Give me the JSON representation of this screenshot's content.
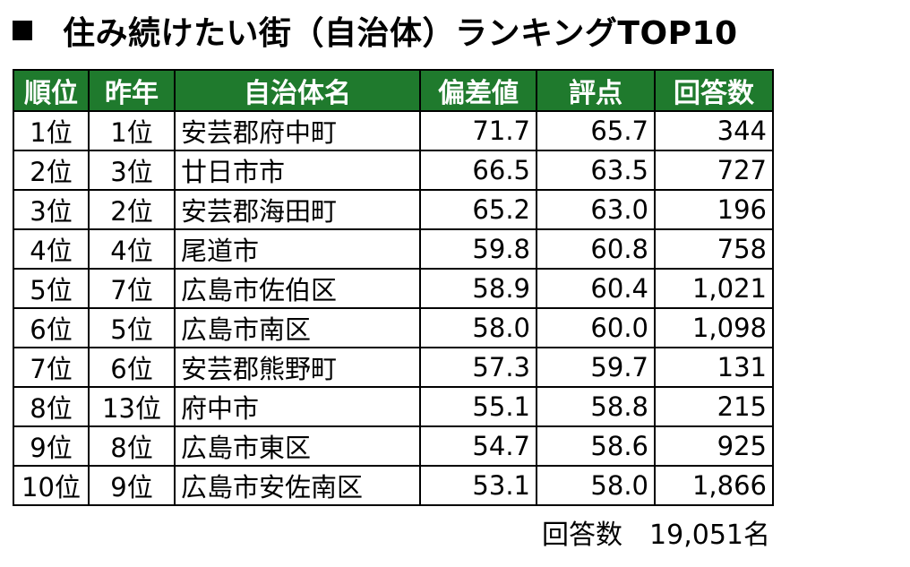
{
  "title": {
    "text": "住み続けたい街（自治体）ランキングTOP10"
  },
  "table": {
    "headers": [
      "順位",
      "昨年",
      "自治体名",
      "偏差値",
      "評点",
      "回答数"
    ],
    "rows": [
      {
        "rank": "1位",
        "prev": "1位",
        "name": "安芸郡府中町",
        "deviation": "71.7",
        "score": "65.7",
        "count": "344"
      },
      {
        "rank": "2位",
        "prev": "3位",
        "name": "廿日市市",
        "deviation": "66.5",
        "score": "63.5",
        "count": "727"
      },
      {
        "rank": "3位",
        "prev": "2位",
        "name": "安芸郡海田町",
        "deviation": "65.2",
        "score": "63.0",
        "count": "196"
      },
      {
        "rank": "4位",
        "prev": "4位",
        "name": "尾道市",
        "deviation": "59.8",
        "score": "60.8",
        "count": "758"
      },
      {
        "rank": "5位",
        "prev": "7位",
        "name": "広島市佐伯区",
        "deviation": "58.9",
        "score": "60.4",
        "count": "1,021"
      },
      {
        "rank": "6位",
        "prev": "5位",
        "name": "広島市南区",
        "deviation": "58.0",
        "score": "60.0",
        "count": "1,098"
      },
      {
        "rank": "7位",
        "prev": "6位",
        "name": "安芸郡熊野町",
        "deviation": "57.3",
        "score": "59.7",
        "count": "131"
      },
      {
        "rank": "8位",
        "prev": "13位",
        "name": "府中市",
        "deviation": "55.1",
        "score": "58.8",
        "count": "215"
      },
      {
        "rank": "9位",
        "prev": "8位",
        "name": "広島市東区",
        "deviation": "54.7",
        "score": "58.6",
        "count": "925"
      },
      {
        "rank": "10位",
        "prev": "9位",
        "name": "広島市安佐南区",
        "deviation": "53.1",
        "score": "58.0",
        "count": "1,866"
      }
    ]
  },
  "footer": {
    "label": "回答数",
    "value": "19,051名"
  },
  "colors": {
    "header_bg": "#1f7a2d",
    "header_text": "#ffffff"
  }
}
